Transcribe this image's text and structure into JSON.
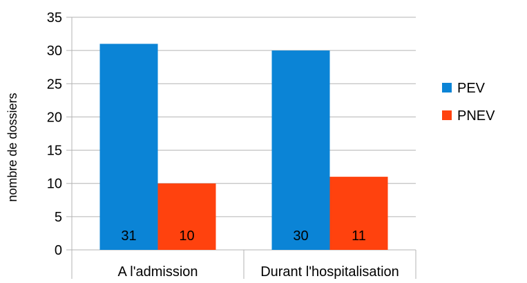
{
  "chart_data": {
    "type": "bar",
    "categories": [
      "A l'admission",
      "Durant l'hospitalisation"
    ],
    "series": [
      {
        "name": "PEV",
        "values": [
          31,
          30
        ],
        "color": "#0b84d6"
      },
      {
        "name": "PNEV",
        "values": [
          10,
          11
        ],
        "color": "#ff420e"
      }
    ],
    "title": "",
    "xlabel": "",
    "ylabel": "nombre de dossiers",
    "ylim": [
      0,
      35
    ],
    "yticks": [
      0,
      5,
      10,
      15,
      20,
      25,
      30,
      35
    ],
    "grid": true,
    "legend_position": "right",
    "data_labels": true
  }
}
